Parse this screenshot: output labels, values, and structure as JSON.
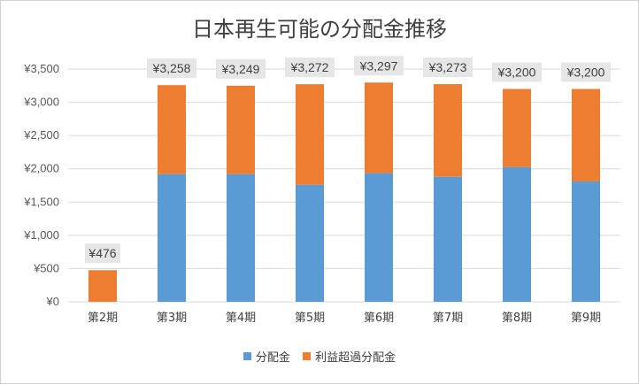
{
  "chart_data": {
    "type": "bar",
    "stacked": true,
    "title": "日本再生可能の分配金推移",
    "categories": [
      "第2期",
      "第3期",
      "第4期",
      "第5期",
      "第6期",
      "第7期",
      "第8期",
      "第9期"
    ],
    "series": [
      {
        "name": "分配金",
        "color": "#5b9bd5",
        "values": [
          0,
          1920,
          1920,
          1760,
          1935,
          1880,
          2025,
          1810
        ]
      },
      {
        "name": "利益超過分配金",
        "color": "#ed7d31",
        "values": [
          476,
          1338,
          1329,
          1512,
          1362,
          1393,
          1175,
          1390
        ]
      }
    ],
    "totals": [
      476,
      3258,
      3249,
      3272,
      3297,
      3273,
      3200,
      3200
    ],
    "total_labels": [
      "¥476",
      "¥3,258",
      "¥3,249",
      "¥3,272",
      "¥3,297",
      "¥3,273",
      "¥3,200",
      "¥3,200"
    ],
    "yticks": [
      0,
      500,
      1000,
      1500,
      2000,
      2500,
      3000,
      3500
    ],
    "ytick_labels": [
      "¥0",
      "¥500",
      "¥1,000",
      "¥1,500",
      "¥2,000",
      "¥2,500",
      "¥3,000",
      "¥3,500"
    ],
    "ylim": [
      0,
      3500
    ],
    "grid": true,
    "legend_position": "bottom"
  }
}
